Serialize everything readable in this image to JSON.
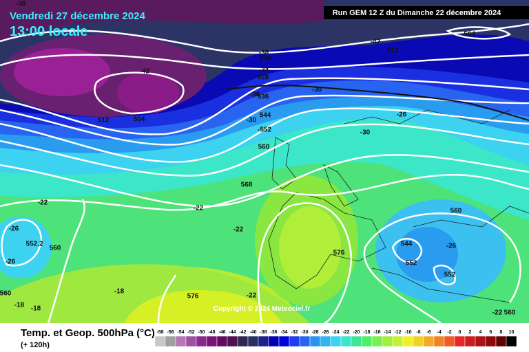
{
  "header": {
    "date": "Vendredi 27 décembre 2024",
    "time": "13:00 locale",
    "run": "Run GEM 12 Z du Dimanche 22 décembre 2024"
  },
  "map": {
    "labels": [
      "-38",
      "-42",
      "512",
      "504",
      "-38",
      "520",
      "-34",
      "528",
      "-42",
      "512",
      "-504",
      "-36",
      "536",
      "-30",
      "544",
      "-30",
      "-552",
      "-26",
      "-30",
      "560",
      "568",
      "-22",
      "-22",
      "-22",
      "-26",
      "552.2",
      "560",
      "-26",
      "576",
      "560",
      "544",
      "-26",
      "552",
      "552",
      "560",
      "-18",
      "-18",
      "-18",
      "576",
      "-22",
      "-22",
      "560"
    ],
    "copyright": "Copyright © 2024 Meteociel.fr"
  },
  "legend": {
    "title": "Temp. et Geop. 500hPa (°C)",
    "lead": "(+ 120h)",
    "ticks": [
      -58,
      -56,
      -54,
      -52,
      -50,
      -48,
      -46,
      -44,
      -42,
      -40,
      -38,
      -36,
      -34,
      -32,
      -30,
      -28,
      -26,
      -24,
      -22,
      -20,
      -18,
      -16,
      -14,
      -12,
      -10,
      -8,
      -6,
      -4,
      -2,
      0,
      2,
      4,
      6,
      8,
      10
    ]
  }
}
